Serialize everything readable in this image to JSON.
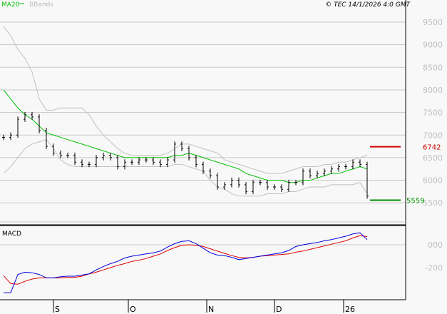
{
  "header": {
    "copyright": "© TEC 14/1/2026 4:0 GMT",
    "legend": [
      {
        "name": "MA20",
        "color": "#00c000"
      },
      {
        "name": "BBands",
        "color": "#c0c0c0"
      }
    ]
  },
  "colors": {
    "background": "#f8f8f8",
    "price": "#000000",
    "ma20": "#00c000",
    "bbands": "#c0c0c0",
    "macd": "#0000e0",
    "signal": "#e00000",
    "resistance": "#d00000",
    "support": "#009000",
    "grid": "#c8c8c8",
    "axis_label": "#c0c0c0"
  },
  "chart_data": [
    {
      "type": "line",
      "title": "",
      "y_ticks": [
        "9500",
        "9000",
        "8500",
        "8000",
        "7500",
        "7000",
        "6500",
        "6000",
        "5500"
      ],
      "ylim": [
        5000,
        9800
      ],
      "grid": true,
      "x_ticks": [
        {
          "label": "S",
          "index": 7
        },
        {
          "label": "O",
          "index": 17.5
        },
        {
          "label": "N",
          "index": 28.5
        },
        {
          "label": "D",
          "index": 38
        },
        {
          "label": "26",
          "index": 47.7
        }
      ],
      "close": [
        6950,
        7000,
        7350,
        7450,
        7400,
        7100,
        6750,
        6600,
        6550,
        6550,
        6400,
        6350,
        6350,
        6500,
        6550,
        6500,
        6300,
        6400,
        6400,
        6450,
        6450,
        6400,
        6350,
        6450,
        6800,
        6700,
        6500,
        6350,
        6200,
        6100,
        5850,
        5900,
        6000,
        5900,
        5750,
        5950,
        5950,
        5850,
        5850,
        5800,
        5950,
        5950,
        6200,
        6100,
        6150,
        6200,
        6250,
        6300,
        6300,
        6400,
        6350,
        5650
      ],
      "series": [
        {
          "name": "MA20",
          "values": [
            8000,
            7800,
            7600,
            7450,
            7350,
            7200,
            7050,
            7000,
            6950,
            6900,
            6850,
            6800,
            6750,
            6700,
            6650,
            6600,
            6550,
            6500,
            6500,
            6500,
            6500,
            6500,
            6500,
            6500,
            6550,
            6550,
            6600,
            6550,
            6500,
            6450,
            6400,
            6350,
            6300,
            6250,
            6150,
            6100,
            6050,
            6000,
            6000,
            6000,
            5950,
            5950,
            6000,
            6000,
            6050,
            6100,
            6150,
            6150,
            6200,
            6250,
            6300,
            6250
          ]
        },
        {
          "name": "BBands",
          "values": [
            9400,
            9200,
            8900,
            8700,
            8400,
            7800,
            7550,
            7550,
            7600,
            7600,
            7600,
            7600,
            7450,
            7200,
            7000,
            6850,
            6700,
            6600,
            6550,
            6550,
            6550,
            6550,
            6550,
            6600,
            6700,
            6800,
            6800,
            6750,
            6700,
            6650,
            6600,
            6450,
            6400,
            6350,
            6300,
            6250,
            6200,
            6150,
            6150,
            6150,
            6200,
            6250,
            6300,
            6300,
            6300,
            6350,
            6350,
            6400,
            6400,
            6450,
            6500,
            6550
          ]
        },
        {
          "values": [
            6150,
            6300,
            6500,
            6700,
            6800,
            6850,
            6900,
            6700,
            6450,
            6350,
            6300,
            6300,
            6300,
            6300,
            6300,
            6300,
            6300,
            6300,
            6300,
            6300,
            6300,
            6300,
            6300,
            6300,
            6350,
            6350,
            6300,
            6250,
            6200,
            6000,
            5850,
            5800,
            5700,
            5650,
            5650,
            5650,
            5650,
            5700,
            5700,
            5700,
            5750,
            5750,
            5800,
            5850,
            5850,
            5850,
            5900,
            5900,
            5900,
            5900,
            5950,
            5700
          ]
        }
      ],
      "levels": [
        {
          "label": "6742",
          "value": 6742,
          "color": "#d00000"
        },
        {
          "label": "5559",
          "value": 5559,
          "color": "#009000"
        }
      ]
    },
    {
      "type": "line",
      "title": "MACD",
      "y_ticks": [
        "000",
        "-200"
      ],
      "ylim": [
        -480,
        200
      ],
      "grid": true,
      "series": [
        {
          "values": [
            -420,
            -420,
            -260,
            -240,
            -245,
            -260,
            -290,
            -290,
            -280,
            -275,
            -275,
            -265,
            -255,
            -220,
            -190,
            -165,
            -145,
            -115,
            -100,
            -90,
            -80,
            -70,
            -55,
            -20,
            10,
            30,
            35,
            10,
            -30,
            -70,
            -90,
            -95,
            -110,
            -130,
            -120,
            -110,
            -100,
            -90,
            -80,
            -70,
            -50,
            -15,
            0,
            10,
            20,
            35,
            45,
            60,
            75,
            95,
            105,
            45
          ]
        },
        {
          "values": [
            -270,
            -340,
            -345,
            -320,
            -300,
            -290,
            -290,
            -290,
            -290,
            -285,
            -285,
            -275,
            -255,
            -240,
            -220,
            -200,
            -180,
            -165,
            -145,
            -135,
            -120,
            -100,
            -80,
            -50,
            -25,
            -5,
            0,
            -5,
            -15,
            -35,
            -55,
            -75,
            -95,
            -110,
            -115,
            -110,
            -100,
            -95,
            -90,
            -85,
            -80,
            -65,
            -55,
            -40,
            -25,
            -10,
            5,
            20,
            35,
            60,
            80,
            70
          ]
        }
      ]
    }
  ]
}
